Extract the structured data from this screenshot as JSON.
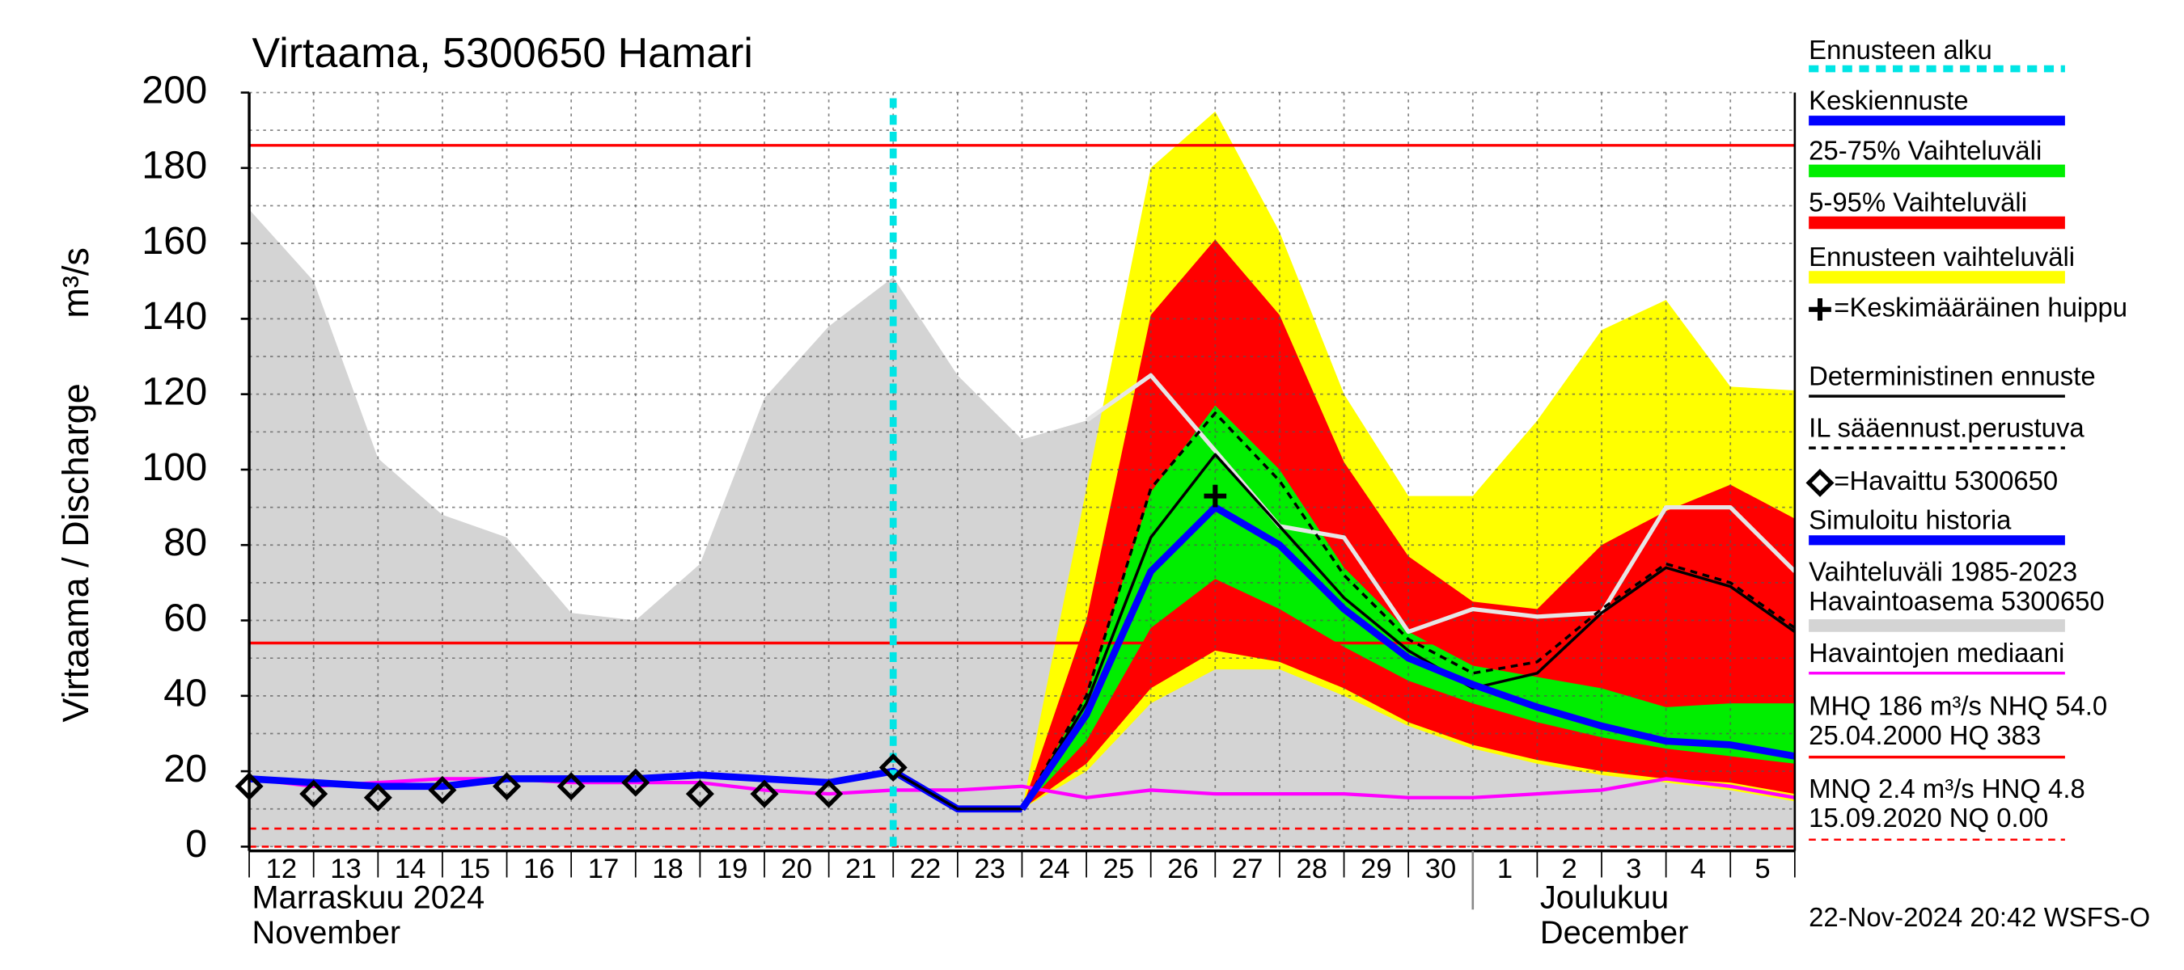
{
  "chart_data": {
    "type": "hydrograph",
    "title": "Virtaama, 5300650 Hamari",
    "ylabel": "Virtaama / Discharge",
    "yunit": "m³/s",
    "categories": [
      "12",
      "13",
      "14",
      "15",
      "16",
      "17",
      "18",
      "19",
      "20",
      "21",
      "22",
      "23",
      "24",
      "25",
      "26",
      "27",
      "28",
      "29",
      "30",
      "1",
      "2",
      "3",
      "4",
      "5",
      null
    ],
    "months": [
      {
        "category": "12",
        "label": [
          "Marraskuu 2024",
          "November"
        ]
      },
      {
        "category": "1",
        "label": [
          "Joulukuu",
          "December"
        ]
      }
    ],
    "ylim": [
      0,
      200
    ],
    "yticks": [
      0,
      20,
      40,
      60,
      80,
      100,
      120,
      140,
      160,
      180,
      200
    ],
    "grid": true,
    "forecast_start": {
      "name": "Ennusteen alku",
      "category": "22",
      "color": "#00e5e5"
    },
    "series": [
      {
        "name": "Keskiennuste",
        "kind": "line",
        "color": "#0000ff",
        "width": 5,
        "values": [
          null,
          null,
          null,
          null,
          null,
          null,
          null,
          null,
          null,
          null,
          null,
          null,
          10,
          35,
          73,
          90,
          80,
          63,
          50,
          43,
          37,
          32,
          28,
          27,
          24
        ]
      },
      {
        "name": "25-75% Vaihteluväli",
        "kind": "band",
        "color": "#00ee00",
        "high": [
          null,
          null,
          null,
          null,
          null,
          null,
          null,
          null,
          null,
          null,
          null,
          null,
          10,
          40,
          94,
          117,
          100,
          74,
          57,
          48,
          45,
          42,
          37,
          38,
          38
        ],
        "low": [
          null,
          null,
          null,
          null,
          null,
          null,
          null,
          null,
          null,
          null,
          null,
          null,
          10,
          28,
          58,
          71,
          63,
          53,
          44,
          38,
          33,
          29,
          26,
          24,
          22
        ]
      },
      {
        "name": "5-95% Vaihteluväli",
        "kind": "band",
        "color": "#ff0000",
        "high": [
          null,
          null,
          null,
          null,
          null,
          null,
          null,
          null,
          null,
          null,
          null,
          null,
          10,
          60,
          141,
          161,
          141,
          102,
          77,
          65,
          63,
          80,
          89,
          96,
          87
        ],
        "low": [
          null,
          null,
          null,
          null,
          null,
          null,
          null,
          null,
          null,
          null,
          null,
          null,
          10,
          22,
          42,
          52,
          49,
          42,
          33,
          27,
          23,
          20,
          18,
          17,
          14
        ]
      },
      {
        "name": "Ennusteen vaihteluväli",
        "kind": "band",
        "color": "#ffff00",
        "high": [
          null,
          null,
          null,
          null,
          null,
          null,
          null,
          null,
          null,
          null,
          null,
          null,
          10,
          95,
          180,
          195,
          163,
          120,
          93,
          93,
          113,
          137,
          145,
          122,
          121
        ],
        "low": [
          null,
          null,
          null,
          null,
          null,
          null,
          null,
          null,
          null,
          null,
          null,
          null,
          10,
          20,
          38,
          47,
          47,
          40,
          32,
          26,
          22,
          19,
          17,
          15,
          12
        ]
      },
      {
        "name": "=Keskimääräinen huippu",
        "kind": "marker",
        "marker": "plus",
        "color": "#000000",
        "values": [
          null,
          null,
          null,
          null,
          null,
          null,
          null,
          null,
          null,
          null,
          null,
          null,
          null,
          null,
          null,
          93,
          null,
          null,
          null,
          null,
          null,
          null,
          null,
          null,
          null
        ]
      },
      {
        "name": "Deterministinen ennuste",
        "kind": "line",
        "color": "#000000",
        "width": 2,
        "values": [
          null,
          null,
          null,
          null,
          null,
          null,
          null,
          null,
          null,
          null,
          20,
          10,
          10,
          38,
          82,
          104,
          85,
          66,
          52,
          42,
          46,
          62,
          74,
          69,
          57
        ]
      },
      {
        "name": "IL sääennust.perustuva",
        "kind": "dashed",
        "color": "#000000",
        "width": 2,
        "values": [
          null,
          null,
          null,
          null,
          null,
          null,
          null,
          null,
          null,
          null,
          null,
          null,
          10,
          40,
          95,
          115,
          97,
          72,
          55,
          46,
          49,
          63,
          75,
          70,
          58
        ]
      },
      {
        "name": "=Havaittu 5300650",
        "kind": "marker",
        "marker": "diamond",
        "color": "#000000",
        "values": [
          16,
          14,
          13,
          15,
          16,
          16,
          17,
          14,
          14,
          14,
          21,
          null,
          null,
          null,
          null,
          null,
          null,
          null,
          null,
          null,
          null,
          null,
          null,
          null,
          null
        ]
      },
      {
        "name": "Simuloitu historia",
        "kind": "line",
        "color": "#0000ff",
        "width": 5,
        "values": [
          18,
          17,
          16,
          16,
          18,
          18,
          18,
          19,
          18,
          17,
          20,
          10,
          10,
          null,
          null,
          null,
          null,
          null,
          null,
          null,
          null,
          null,
          null,
          null,
          null
        ]
      },
      {
        "name": [
          "Vaihteluväli 1985-2023",
          " Havaintoasema 5300650"
        ],
        "kind": "band",
        "color": "#d4d4d4",
        "high": [
          169,
          150,
          103,
          88,
          82,
          62,
          60,
          75,
          119,
          138,
          151,
          125,
          108,
          113,
          126,
          130,
          120,
          100,
          80,
          85,
          80,
          80,
          80,
          80,
          80
        ],
        "low": [
          0,
          0,
          0,
          0,
          0,
          0,
          0,
          0,
          0,
          0,
          0,
          0,
          0,
          0,
          0,
          0,
          0,
          0,
          0,
          0,
          0,
          0,
          0,
          0,
          0
        ]
      },
      {
        "name": "Havaintojen mediaani",
        "kind": "line",
        "color": "#ff00ff",
        "width": 2.5,
        "values": [
          18,
          16,
          17,
          18,
          18,
          17,
          17,
          17,
          15,
          14,
          15,
          15,
          16,
          13,
          15,
          14,
          14,
          14,
          13,
          13,
          14,
          15,
          18,
          16,
          13
        ]
      },
      {
        "kind": "line",
        "color": "#e6e6e6",
        "width": 3,
        "values": [
          null,
          null,
          null,
          null,
          null,
          null,
          null,
          null,
          null,
          null,
          null,
          null,
          null,
          113,
          125,
          105,
          85,
          82,
          57,
          63,
          61,
          62,
          90,
          90,
          73
        ]
      }
    ],
    "hlines": [
      {
        "value": 186,
        "color": "#ff0000",
        "dashed": false
      },
      {
        "value": 54,
        "color": "#ff0000",
        "dashed": false
      },
      {
        "value": 4.8,
        "color": "#ff0000",
        "dashed": true
      },
      {
        "value": 0,
        "color": "#ff0000",
        "dashed": true
      }
    ],
    "stats": [
      {
        "lines": [
          "MHQ  186 m³/s NHQ 54.0",
          "25.04.2000 HQ  383"
        ],
        "color": "#ff0000",
        "dashed": false
      },
      {
        "lines": [
          "MNQ  2.4 m³/s HNQ  4.8",
          "15.09.2020 NQ 0.00"
        ],
        "color": "#ff0000",
        "dashed": true
      }
    ],
    "timestamp": "22-Nov-2024 20:42 WSFS-O"
  }
}
